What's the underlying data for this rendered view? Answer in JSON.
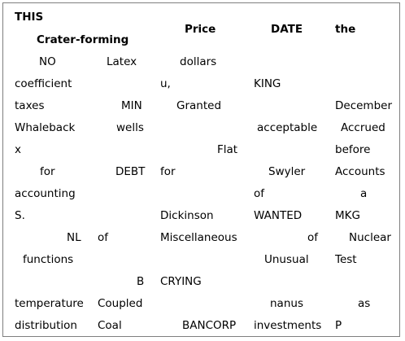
{
  "header": {
    "col1_line1": "THIS",
    "col1_line2": "Crater-forming",
    "price": "Price",
    "date": "DATE",
    "the": "the"
  },
  "rows": [
    [
      "NO",
      "Latex",
      "dollars",
      "",
      ""
    ],
    [
      "coefficient",
      "",
      "u,",
      "KING",
      ""
    ],
    [
      "taxes",
      "MIN",
      "Granted",
      "",
      "December"
    ],
    [
      "Whaleback",
      "wells",
      "",
      "acceptable",
      "Accrued"
    ],
    [
      "x",
      "",
      "Flat",
      "",
      "before"
    ],
    [
      "for",
      "DEBT",
      "for",
      "Swyler",
      "Accounts"
    ],
    [
      "accounting",
      "",
      "",
      "of",
      "a"
    ],
    [
      "S.",
      "",
      "Dickinson",
      "WANTED",
      "MKG"
    ],
    [
      "NL",
      "of",
      "Miscellaneous",
      "of",
      "Nuclear"
    ],
    [
      "functions",
      "",
      "",
      "Unusual",
      "Test"
    ],
    [
      "",
      "B",
      "CRYING",
      "",
      ""
    ],
    [
      "temperature",
      "Coupled",
      "",
      "nanus",
      "as"
    ],
    [
      "distribution",
      "Coal",
      "BANCORP",
      "investments",
      "P"
    ]
  ]
}
